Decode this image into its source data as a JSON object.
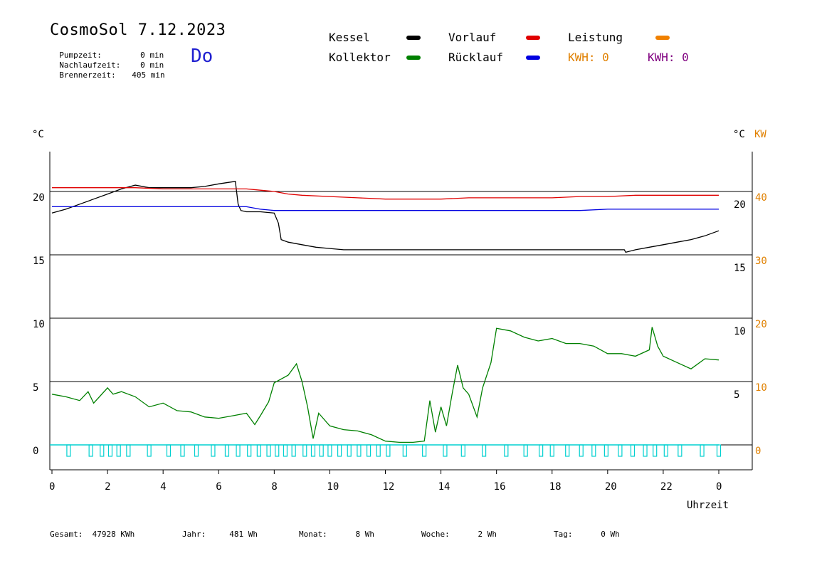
{
  "header": {
    "title": "CosmoSol 7.12.2023",
    "day": "Do",
    "stats": [
      {
        "label": "Pumpzeit:",
        "value": "0 min"
      },
      {
        "label": "Nachlaufzeit:",
        "value": "0 min"
      },
      {
        "label": "Brennerzeit:",
        "value": "405 min"
      }
    ]
  },
  "legend": {
    "items": [
      {
        "label": "Kessel",
        "color": "#000000"
      },
      {
        "label": "Kollektor",
        "color": "#008000"
      },
      {
        "label": "Vorlauf",
        "color": "#e00000"
      },
      {
        "label": "Rücklauf",
        "color": "#0000e0"
      },
      {
        "label": "Leistung",
        "color": "#f08000"
      }
    ],
    "kwh1": {
      "text": "KWH: 0",
      "color": "#e08000"
    },
    "kwh2": {
      "text": "KWH: 0",
      "color": "#800080"
    }
  },
  "footer": {
    "items": [
      {
        "label": "Gesamt:",
        "value": "47928 KWh"
      },
      {
        "label": "Jahr:",
        "value": "481 Wh"
      },
      {
        "label": "Monat:",
        "value": "8 Wh"
      },
      {
        "label": "Woche:",
        "value": "2 Wh"
      },
      {
        "label": "Tag:",
        "value": "0 Wh"
      }
    ]
  },
  "chart_data": {
    "type": "line",
    "xlabel": "Uhrzeit",
    "y_unit_left": "°C",
    "y_unit_right": "°C",
    "y2_unit": "KW",
    "x_ticks": [
      "0",
      "2",
      "4",
      "6",
      "8",
      "10",
      "12",
      "14",
      "16",
      "18",
      "20",
      "22",
      "0"
    ],
    "y_ticks_left": [
      "0",
      "5",
      "10",
      "15",
      "20"
    ],
    "y_ticks_right": [
      "5",
      "10",
      "15",
      "20"
    ],
    "y2_ticks": [
      "0",
      "10",
      "20",
      "30",
      "40"
    ],
    "xlim": [
      0,
      24
    ],
    "ylim": [
      -2,
      23
    ],
    "y2lim": [
      -4,
      46
    ],
    "grid": true,
    "colors": {
      "kessel": "#000000",
      "kollektor": "#008000",
      "vorlauf": "#e00000",
      "ruecklauf": "#0000e0",
      "leistung": "#f08000",
      "pumpe": "#00d0d0",
      "axis2": "#e08000"
    },
    "series": [
      {
        "name": "Kessel",
        "color": "#000000",
        "x": [
          0,
          0.5,
          1,
          1.5,
          2,
          2.5,
          3,
          3.5,
          4,
          4.5,
          5,
          5.5,
          6,
          6.6,
          6.7,
          6.8,
          7,
          7.5,
          8,
          8.15,
          8.25,
          8.5,
          9,
          9.5,
          10,
          10.5,
          11,
          12,
          13,
          14,
          15,
          16,
          17,
          18,
          19,
          20,
          20.6,
          20.65,
          21,
          21.5,
          22,
          22.5,
          23,
          23.5,
          24
        ],
        "y": [
          18.3,
          18.6,
          19,
          19.4,
          19.8,
          20.2,
          20.5,
          20.3,
          20.3,
          20.3,
          20.3,
          20.4,
          20.6,
          20.8,
          19.0,
          18.5,
          18.4,
          18.4,
          18.3,
          17.5,
          16.2,
          16.0,
          15.8,
          15.6,
          15.5,
          15.4,
          15.4,
          15.4,
          15.4,
          15.4,
          15.4,
          15.4,
          15.4,
          15.4,
          15.4,
          15.4,
          15.4,
          15.2,
          15.4,
          15.6,
          15.8,
          16.0,
          16.2,
          16.5,
          16.9
        ]
      },
      {
        "name": "Kollektor",
        "color": "#008000",
        "x": [
          0,
          0.5,
          1,
          1.3,
          1.5,
          2,
          2.2,
          2.5,
          3,
          3.5,
          4,
          4.5,
          5,
          5.5,
          6,
          6.5,
          7,
          7.3,
          7.5,
          7.8,
          8,
          8.5,
          8.8,
          9,
          9.2,
          9.4,
          9.6,
          10,
          10.5,
          11,
          11.5,
          12,
          12.5,
          13,
          13.4,
          13.6,
          13.8,
          14,
          14.2,
          14.4,
          14.6,
          14.8,
          15,
          15.3,
          15.5,
          15.8,
          16,
          16.5,
          17,
          17.5,
          18,
          18.5,
          19,
          19.5,
          20,
          20.5,
          21,
          21.5,
          21.6,
          21.8,
          22,
          22.5,
          23,
          23.5,
          24
        ],
        "y": [
          4.0,
          3.8,
          3.5,
          4.2,
          3.3,
          4.5,
          4.0,
          4.2,
          3.8,
          3.0,
          3.3,
          2.7,
          2.6,
          2.2,
          2.1,
          2.3,
          2.5,
          1.6,
          2.3,
          3.4,
          4.9,
          5.5,
          6.4,
          5.0,
          3.0,
          0.5,
          2.5,
          1.5,
          1.2,
          1.1,
          0.8,
          0.3,
          0.2,
          0.2,
          0.3,
          3.5,
          1.0,
          3.0,
          1.5,
          4.0,
          6.3,
          4.5,
          4.0,
          2.2,
          4.5,
          6.5,
          9.2,
          9.0,
          8.5,
          8.2,
          8.4,
          8.0,
          8.0,
          7.8,
          7.2,
          7.2,
          7.0,
          7.5,
          9.3,
          7.8,
          7.0,
          6.5,
          6.0,
          6.8,
          6.7
        ]
      },
      {
        "name": "Vorlauf",
        "color": "#e00000",
        "x": [
          0,
          1,
          2,
          3,
          4,
          5,
          6,
          7,
          7.5,
          8,
          8.5,
          9,
          10,
          11,
          12,
          13,
          14,
          15,
          16,
          17,
          18,
          19,
          20,
          21,
          22,
          23,
          24
        ],
        "y": [
          20.3,
          20.3,
          20.3,
          20.3,
          20.2,
          20.2,
          20.2,
          20.2,
          20.1,
          20.0,
          19.8,
          19.7,
          19.6,
          19.5,
          19.4,
          19.4,
          19.4,
          19.5,
          19.5,
          19.5,
          19.5,
          19.6,
          19.6,
          19.7,
          19.7,
          19.7,
          19.7
        ]
      },
      {
        "name": "Rücklauf",
        "color": "#0000e0",
        "x": [
          0,
          1,
          2,
          3,
          4,
          5,
          6,
          7,
          7.5,
          8,
          9,
          10,
          11,
          12,
          13,
          14,
          15,
          16,
          17,
          18,
          19,
          20,
          21,
          22,
          23,
          24
        ],
        "y": [
          18.8,
          18.8,
          18.8,
          18.8,
          18.8,
          18.8,
          18.8,
          18.8,
          18.6,
          18.5,
          18.5,
          18.5,
          18.5,
          18.5,
          18.5,
          18.5,
          18.5,
          18.5,
          18.5,
          18.5,
          18.5,
          18.6,
          18.6,
          18.6,
          18.6,
          18.6
        ]
      },
      {
        "name": "Pumpe",
        "color": "#00d0d0",
        "pulses": [
          0.6,
          1.4,
          1.8,
          2.1,
          2.4,
          2.75,
          3.5,
          4.2,
          4.7,
          5.2,
          5.8,
          6.3,
          6.7,
          7.1,
          7.45,
          7.8,
          8.1,
          8.4,
          8.7,
          9.1,
          9.4,
          9.7,
          10.0,
          10.35,
          10.7,
          11.05,
          11.4,
          11.75,
          12.1,
          12.7,
          13.4,
          14.15,
          14.8,
          15.55,
          16.35,
          17.05,
          17.6,
          18.0,
          18.55,
          19.05,
          19.5,
          19.95,
          20.45,
          20.9,
          21.35,
          21.7,
          22.1,
          22.6,
          23.4,
          24.0
        ]
      }
    ]
  }
}
